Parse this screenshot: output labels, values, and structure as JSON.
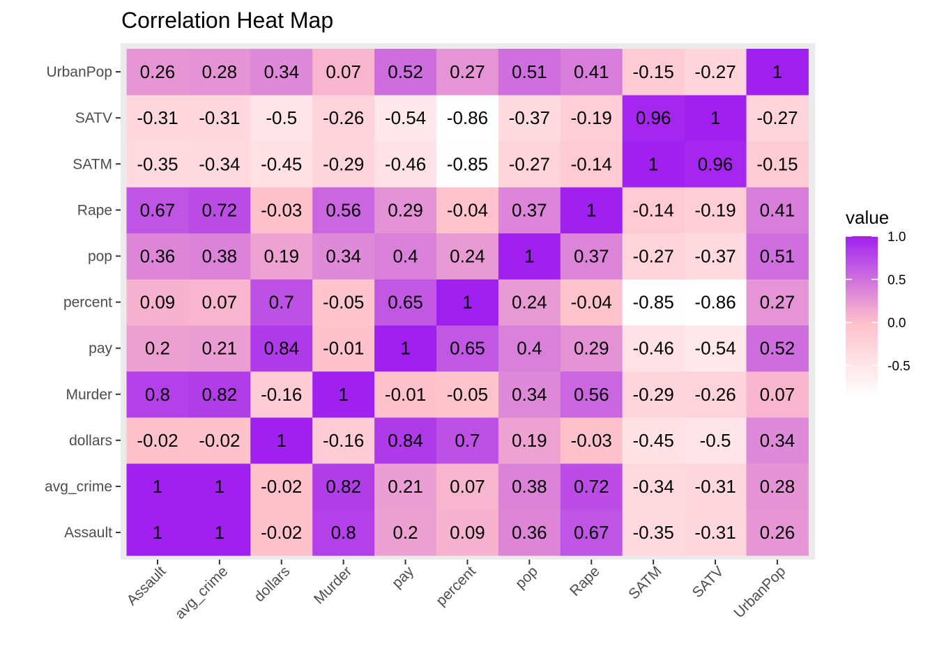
{
  "chart_data": {
    "type": "heatmap",
    "title": "Correlation Heat Map",
    "xlabel": "",
    "ylabel": "",
    "x_categories": [
      "Assault",
      "avg_crime",
      "dollars",
      "Murder",
      "pay",
      "percent",
      "pop",
      "Rape",
      "SATM",
      "SATV",
      "UrbanPop"
    ],
    "y_categories": [
      "Assault",
      "avg_crime",
      "dollars",
      "Murder",
      "pay",
      "percent",
      "pop",
      "Rape",
      "SATM",
      "SATV",
      "UrbanPop"
    ],
    "values": [
      [
        1,
        1,
        -0.02,
        0.8,
        0.2,
        0.09,
        0.36,
        0.67,
        -0.35,
        -0.31,
        0.26
      ],
      [
        1,
        1,
        -0.02,
        0.82,
        0.21,
        0.07,
        0.38,
        0.72,
        -0.34,
        -0.31,
        0.28
      ],
      [
        -0.02,
        -0.02,
        1,
        -0.16,
        0.84,
        0.7,
        0.19,
        -0.03,
        -0.45,
        -0.5,
        0.34
      ],
      [
        0.8,
        0.82,
        -0.16,
        1,
        -0.01,
        -0.05,
        0.34,
        0.56,
        -0.29,
        -0.26,
        0.07
      ],
      [
        0.2,
        0.21,
        0.84,
        -0.01,
        1,
        0.65,
        0.4,
        0.29,
        -0.46,
        -0.54,
        0.52
      ],
      [
        0.09,
        0.07,
        0.7,
        -0.05,
        0.65,
        1,
        0.24,
        -0.04,
        -0.85,
        -0.86,
        0.27
      ],
      [
        0.36,
        0.38,
        0.19,
        0.34,
        0.4,
        0.24,
        1,
        0.37,
        -0.27,
        -0.37,
        0.51
      ],
      [
        0.67,
        0.72,
        -0.03,
        0.56,
        0.29,
        -0.04,
        0.37,
        1,
        -0.14,
        -0.19,
        0.41
      ],
      [
        -0.35,
        -0.34,
        -0.45,
        -0.29,
        -0.46,
        -0.85,
        -0.27,
        -0.14,
        1,
        0.96,
        -0.15
      ],
      [
        -0.31,
        -0.31,
        -0.5,
        -0.26,
        -0.54,
        -0.86,
        -0.37,
        -0.19,
        0.96,
        1,
        -0.27
      ],
      [
        0.26,
        0.28,
        0.34,
        0.07,
        0.52,
        0.27,
        0.51,
        0.41,
        -0.15,
        -0.27,
        1
      ]
    ],
    "color_scale": {
      "low": "#ffffff",
      "mid": "#ffc0cb",
      "high": "#a020f0",
      "midpoint": 0,
      "limits": [
        -0.86,
        1
      ]
    },
    "legend": {
      "title": "value",
      "position": "right",
      "ticks": [
        1.0,
        0.5,
        0.0,
        -0.5
      ],
      "tick_labels": [
        "1.0",
        "0.5",
        "0.0",
        "-0.5"
      ]
    },
    "panel_background": "#ebebeb",
    "axis_text_color": "#4d4d4d"
  }
}
